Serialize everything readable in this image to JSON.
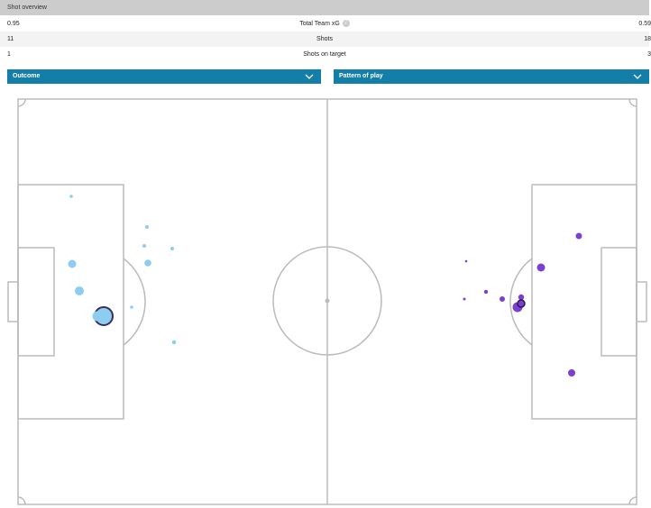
{
  "header": {
    "title": "Shot overview"
  },
  "stats": [
    {
      "left": "0.95",
      "label": "Total Team xG",
      "right": "0.59"
    },
    {
      "left": "11",
      "label": "Shots",
      "right": "18"
    },
    {
      "left": "1",
      "label": "Shots on target",
      "right": "3"
    }
  ],
  "filters": {
    "outcome_label": "Outcome",
    "pattern_label": "Pattern of play"
  },
  "colors": {
    "header_bg": "#cccccc",
    "dropdown_bg": "#137ea8",
    "home_shots": "#8ccdf0",
    "away_shots": "#7d3fcf",
    "pitch_lines": "#bbbbbb"
  },
  "icons": [
    "info-icon",
    "chevron-down-icon"
  ]
}
